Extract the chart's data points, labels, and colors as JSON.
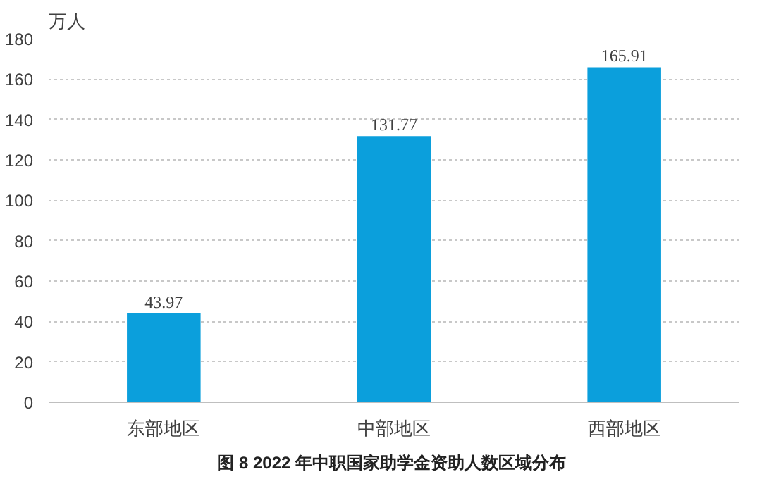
{
  "chart_data": {
    "type": "bar",
    "title": "图 8  2022 年中职国家助学金资助人数区域分布",
    "ylabel": "万人",
    "categories": [
      "东部地区",
      "中部地区",
      "西部地区"
    ],
    "values": [
      43.97,
      131.77,
      165.91
    ],
    "color": "#0b9fdc",
    "ylim": [
      0,
      180
    ],
    "yticks": [
      0,
      20,
      40,
      60,
      80,
      100,
      120,
      140,
      160,
      180
    ],
    "grid": "y",
    "data_labels": true
  }
}
